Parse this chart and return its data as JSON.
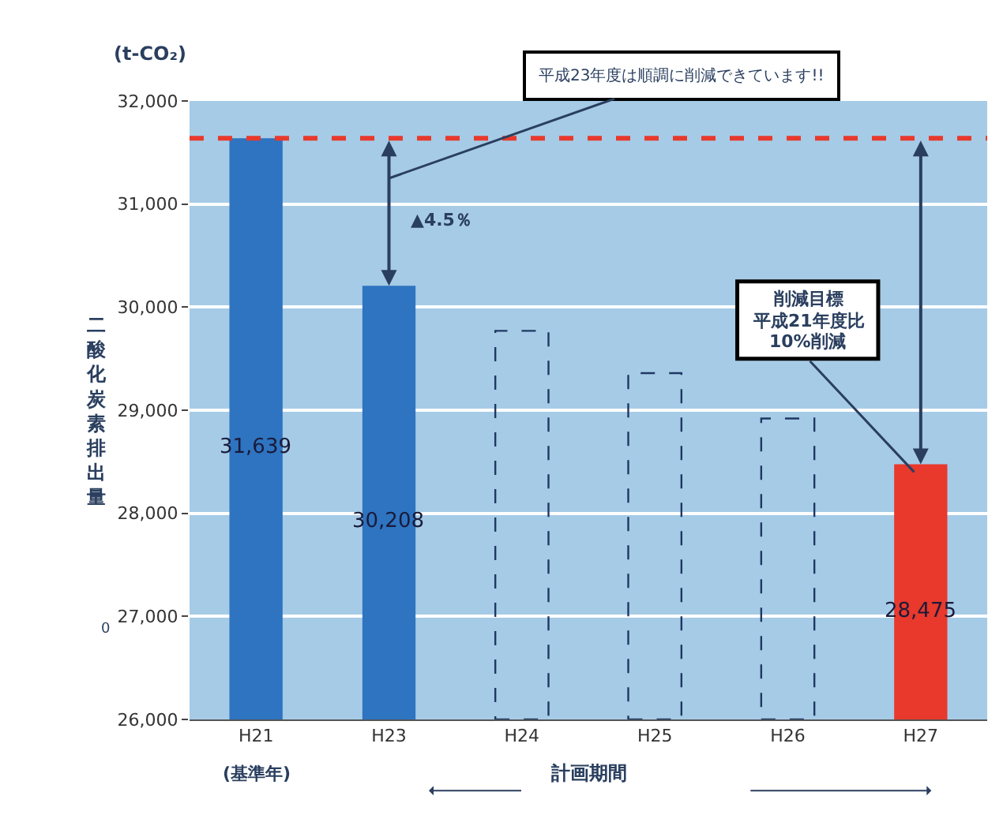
{
  "chart_data": {
    "type": "bar",
    "ylabel": "二酸化炭素排出量",
    "xlabel": "計画期間",
    "categories": [
      "H21",
      "H23",
      "H24",
      "H25",
      "H26",
      "H27"
    ],
    "series": [
      {
        "colors": [
          "#2e74c0",
          "#2e74c0",
          null,
          null,
          null,
          "#e8392c"
        ],
        "values": [
          31639,
          30208,
          null,
          null,
          null,
          28475
        ],
        "value_labels": [
          "31,639",
          "30,208",
          null,
          null,
          null,
          "28,475"
        ]
      },
      {
        "color": "#1f3864",
        "line_style": "dashed",
        "values": [
          null,
          null,
          29770,
          29360,
          28920,
          null
        ]
      }
    ],
    "ylim": [
      26000,
      32000
    ],
    "yticks": [
      {
        "value": 26000,
        "label": "26,000"
      },
      {
        "value": 27000,
        "label": "27,000"
      },
      {
        "value": 28000,
        "label": "28,000"
      },
      {
        "value": 29000,
        "label": "29,000"
      },
      {
        "value": 30000,
        "label": "30,000"
      },
      {
        "value": 31000,
        "label": "31,000"
      },
      {
        "value": 32000,
        "label": "32,000"
      }
    ],
    "grid": "y",
    "ref_lines": [
      {
        "axis": "y",
        "value": 31639,
        "color": "#e8392c",
        "line_style": "dashed"
      }
    ],
    "annotations": [
      "(t-CO₂)",
      "平成23年度は順調に削減できています!!",
      "▲4.5％",
      "削減目標",
      "平成21年度比",
      "10%削減",
      "(基準年)",
      "0"
    ]
  }
}
